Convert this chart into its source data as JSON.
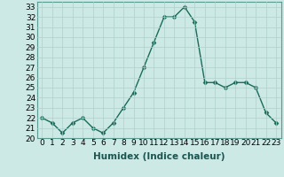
{
  "x": [
    0,
    1,
    2,
    3,
    4,
    5,
    6,
    7,
    8,
    9,
    10,
    11,
    12,
    13,
    14,
    15,
    16,
    17,
    18,
    19,
    20,
    21,
    22,
    23
  ],
  "y": [
    22,
    21.5,
    20.5,
    21.5,
    22,
    21,
    20.5,
    21.5,
    23,
    24.5,
    27,
    29.5,
    32,
    32,
    33,
    31.5,
    25.5,
    25.5,
    25,
    25.5,
    25.5,
    25,
    22.5,
    21.5
  ],
  "line_color": "#1a6b5a",
  "marker": "D",
  "marker_size": 2.5,
  "bg_color": "#cce9e5",
  "grid_color": "#b0d0cc",
  "xlabel": "Humidex (Indice chaleur)",
  "xlim": [
    -0.5,
    23.5
  ],
  "ylim": [
    20,
    33.5
  ],
  "xticks": [
    0,
    1,
    2,
    3,
    4,
    5,
    6,
    7,
    8,
    9,
    10,
    11,
    12,
    13,
    14,
    15,
    16,
    17,
    18,
    19,
    20,
    21,
    22,
    23
  ],
  "yticks": [
    20,
    21,
    22,
    23,
    24,
    25,
    26,
    27,
    28,
    29,
    30,
    31,
    32,
    33
  ],
  "tick_label_fontsize": 6.5,
  "xlabel_fontsize": 7.5,
  "line_width": 1.0
}
